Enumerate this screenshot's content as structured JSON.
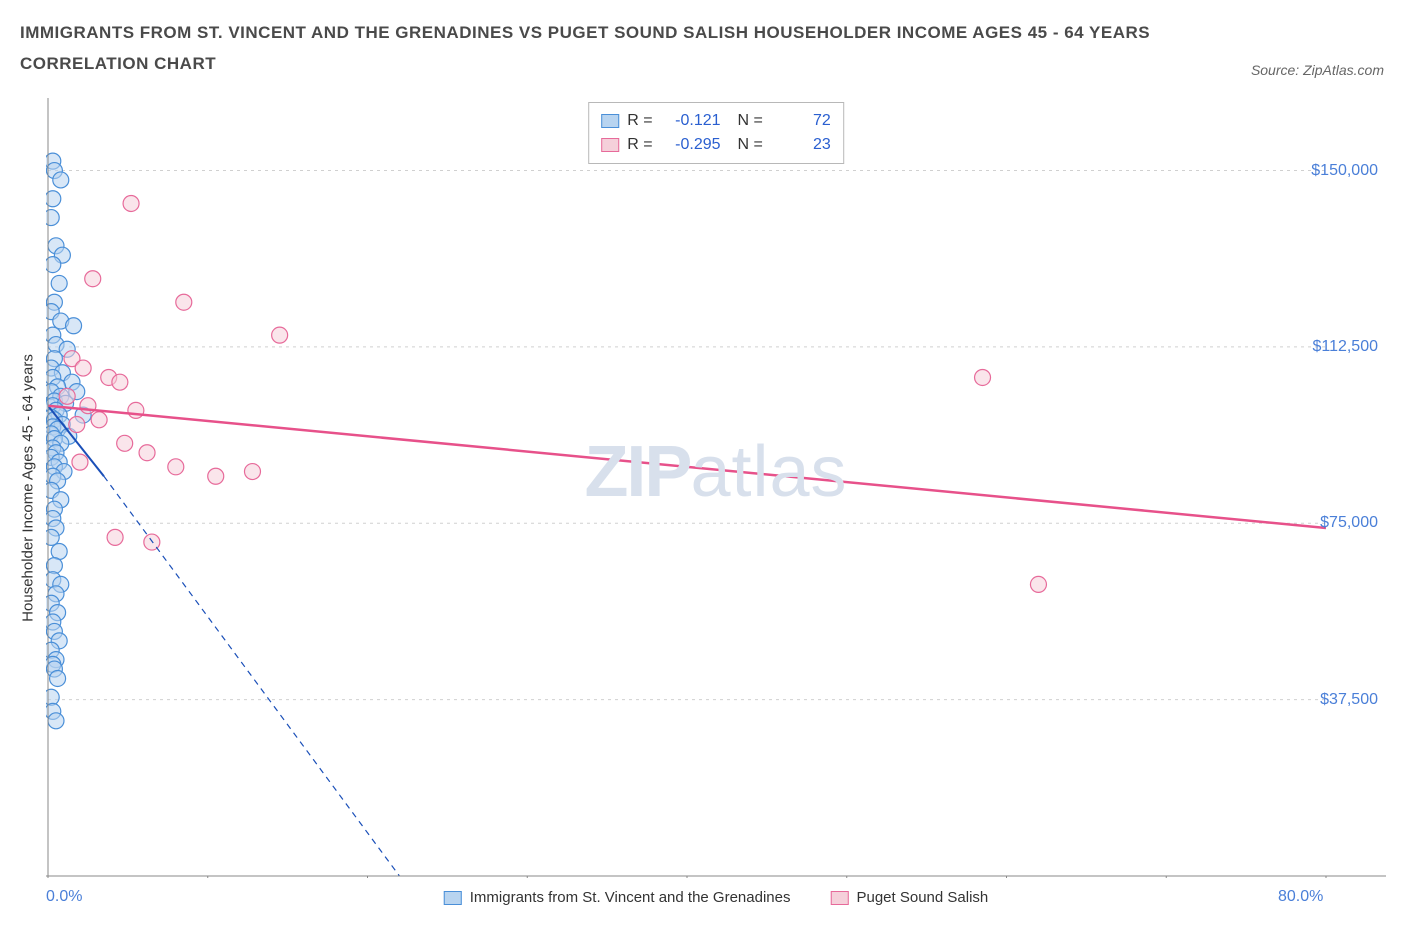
{
  "header": {
    "title_line1": "IMMIGRANTS FROM ST. VINCENT AND THE GRENADINES VS PUGET SOUND SALISH HOUSEHOLDER INCOME AGES 45 - 64 YEARS",
    "title_line2": "CORRELATION CHART",
    "source": "Source: ZipAtlas.com"
  },
  "chart": {
    "type": "scatter",
    "ylabel": "Householder Income Ages 45 - 64 years",
    "xlim": [
      0,
      80
    ],
    "ylim": [
      0,
      165000
    ],
    "y_ticks": [
      37500,
      75000,
      112500,
      150000
    ],
    "y_tick_labels": [
      "$37,500",
      "$75,000",
      "$112,500",
      "$150,000"
    ],
    "x_tick_positions": [
      0,
      10,
      20,
      30,
      40,
      50,
      60,
      70,
      80
    ],
    "x_min_label": "0.0%",
    "x_max_label": "80.0%",
    "grid_color": "#d0d0d0",
    "axis_color": "#888888",
    "background_color": "#ffffff",
    "marker_radius": 8,
    "marker_stroke_width": 1.2,
    "series": [
      {
        "name": "Immigrants from St. Vincent and the Grenadines",
        "fill": "#b8d4f0",
        "stroke": "#4a8fd8",
        "fill_opacity": 0.55,
        "r_value": "-0.121",
        "n_value": "72",
        "points": [
          [
            0.3,
            152000
          ],
          [
            0.4,
            150000
          ],
          [
            0.8,
            148000
          ],
          [
            0.3,
            144000
          ],
          [
            0.2,
            140000
          ],
          [
            0.5,
            134000
          ],
          [
            0.9,
            132000
          ],
          [
            0.3,
            130000
          ],
          [
            0.7,
            126000
          ],
          [
            0.4,
            122000
          ],
          [
            0.2,
            120000
          ],
          [
            0.8,
            118000
          ],
          [
            1.6,
            117000
          ],
          [
            0.3,
            115000
          ],
          [
            0.5,
            113000
          ],
          [
            1.2,
            112000
          ],
          [
            0.4,
            110000
          ],
          [
            0.2,
            108000
          ],
          [
            0.9,
            107000
          ],
          [
            0.3,
            106000
          ],
          [
            1.5,
            105000
          ],
          [
            0.6,
            104000
          ],
          [
            0.2,
            103000
          ],
          [
            0.8,
            102000
          ],
          [
            0.4,
            101000
          ],
          [
            0.3,
            100000
          ],
          [
            1.1,
            100500
          ],
          [
            0.5,
            99000
          ],
          [
            0.7,
            98000
          ],
          [
            0.2,
            97500
          ],
          [
            0.4,
            97000
          ],
          [
            0.9,
            96000
          ],
          [
            0.3,
            95500
          ],
          [
            0.6,
            95000
          ],
          [
            0.2,
            94000
          ],
          [
            1.3,
            93500
          ],
          [
            0.4,
            93000
          ],
          [
            0.8,
            92000
          ],
          [
            0.3,
            91000
          ],
          [
            0.5,
            90000
          ],
          [
            0.2,
            89000
          ],
          [
            0.7,
            88000
          ],
          [
            0.4,
            87000
          ],
          [
            1.0,
            86000
          ],
          [
            0.3,
            85000
          ],
          [
            0.6,
            84000
          ],
          [
            0.2,
            82000
          ],
          [
            0.8,
            80000
          ],
          [
            0.4,
            78000
          ],
          [
            0.3,
            76000
          ],
          [
            0.5,
            74000
          ],
          [
            0.2,
            72000
          ],
          [
            0.7,
            69000
          ],
          [
            0.4,
            66000
          ],
          [
            0.3,
            63000
          ],
          [
            0.8,
            62000
          ],
          [
            0.5,
            60000
          ],
          [
            0.2,
            58000
          ],
          [
            0.6,
            56000
          ],
          [
            0.3,
            54000
          ],
          [
            0.4,
            52000
          ],
          [
            0.7,
            50000
          ],
          [
            0.2,
            48000
          ],
          [
            0.5,
            46000
          ],
          [
            0.3,
            45000
          ],
          [
            0.4,
            44000
          ],
          [
            0.6,
            42000
          ],
          [
            0.2,
            38000
          ],
          [
            0.3,
            35000
          ],
          [
            0.5,
            33000
          ],
          [
            1.8,
            103000
          ],
          [
            2.2,
            98000
          ]
        ],
        "trend": {
          "x1": 0,
          "y1": 100000,
          "x2": 3.5,
          "y2": 85000,
          "dash_x2": 22,
          "dash_y2": 0,
          "color": "#1a4fb8",
          "width": 2
        }
      },
      {
        "name": "Puget Sound Salish",
        "fill": "#f5d0da",
        "stroke": "#e76a9a",
        "fill_opacity": 0.55,
        "r_value": "-0.295",
        "n_value": "23",
        "points": [
          [
            5.2,
            143000
          ],
          [
            2.8,
            127000
          ],
          [
            8.5,
            122000
          ],
          [
            1.5,
            110000
          ],
          [
            2.2,
            108000
          ],
          [
            3.8,
            106000
          ],
          [
            4.5,
            105000
          ],
          [
            1.2,
            102000
          ],
          [
            2.5,
            100000
          ],
          [
            5.5,
            99000
          ],
          [
            3.2,
            97000
          ],
          [
            1.8,
            96000
          ],
          [
            14.5,
            115000
          ],
          [
            4.8,
            92000
          ],
          [
            6.2,
            90000
          ],
          [
            2.0,
            88000
          ],
          [
            8.0,
            87000
          ],
          [
            10.5,
            85000
          ],
          [
            12.8,
            86000
          ],
          [
            58.5,
            106000
          ],
          [
            4.2,
            72000
          ],
          [
            6.5,
            71000
          ],
          [
            62.0,
            62000
          ]
        ],
        "trend": {
          "x1": 0,
          "y1": 100000,
          "x2": 80,
          "y2": 74000,
          "color": "#e7518a",
          "width": 2.5
        }
      }
    ],
    "watermark": {
      "zip": "ZIP",
      "atlas": "atlas"
    },
    "bottom_legend": [
      {
        "label": "Immigrants from St. Vincent and the Grenadines",
        "fill": "#b8d4f0",
        "stroke": "#4a8fd8"
      },
      {
        "label": "Puget Sound Salish",
        "fill": "#f5d0da",
        "stroke": "#e76a9a"
      }
    ]
  }
}
